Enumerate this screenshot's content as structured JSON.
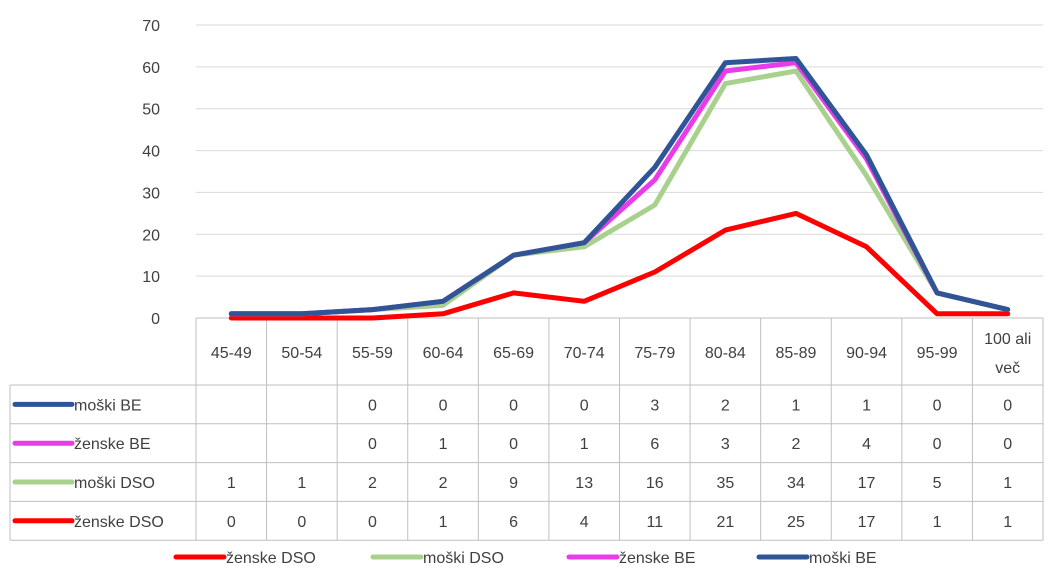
{
  "chart_data": {
    "type": "line",
    "title": "",
    "xlabel": "",
    "ylabel": "",
    "ylim": [
      0,
      70
    ],
    "yticks": [
      0,
      10,
      20,
      30,
      40,
      50,
      60,
      70
    ],
    "grid": true,
    "legend_position": "bottom",
    "categories": [
      "45-49",
      "50-54",
      "55-59",
      "60-64",
      "65-69",
      "70-74",
      "75-79",
      "80-84",
      "85-89",
      "90-94",
      "95-99",
      "100 ali več"
    ],
    "series": [
      {
        "name": "ženske DSO",
        "color": "#FF0000",
        "values": [
          0,
          0,
          0,
          1,
          6,
          4,
          11,
          21,
          25,
          17,
          1,
          1
        ]
      },
      {
        "name": "moški DSO",
        "color": "#A9D18E",
        "values": [
          1,
          1,
          2,
          3,
          15,
          17,
          27,
          56,
          59,
          34,
          6,
          2
        ]
      },
      {
        "name": "ženske BE",
        "color": "#E83CE8",
        "values": [
          1,
          1,
          2,
          4,
          15,
          18,
          33,
          59,
          61,
          38,
          6,
          2
        ]
      },
      {
        "name": "moški BE",
        "color": "#2F5597",
        "values": [
          1,
          1,
          2,
          4,
          15,
          18,
          36,
          61,
          62,
          39,
          6,
          2
        ]
      }
    ],
    "data_table": {
      "rows": [
        {
          "name": "moški BE",
          "color": "#2F5597",
          "cells": [
            "",
            "",
            "0",
            "0",
            "0",
            "0",
            "3",
            "2",
            "1",
            "1",
            "0",
            "0"
          ]
        },
        {
          "name": "ženske BE",
          "color": "#E83CE8",
          "cells": [
            "",
            "",
            "0",
            "1",
            "0",
            "1",
            "6",
            "3",
            "2",
            "4",
            "0",
            "0"
          ]
        },
        {
          "name": "moški DSO",
          "color": "#A9D18E",
          "cells": [
            "1",
            "1",
            "2",
            "2",
            "9",
            "13",
            "16",
            "35",
            "34",
            "17",
            "5",
            "1"
          ]
        },
        {
          "name": "ženske DSO",
          "color": "#FF0000",
          "cells": [
            "0",
            "0",
            "0",
            "1",
            "6",
            "4",
            "11",
            "21",
            "25",
            "17",
            "1",
            "1"
          ]
        }
      ]
    }
  }
}
